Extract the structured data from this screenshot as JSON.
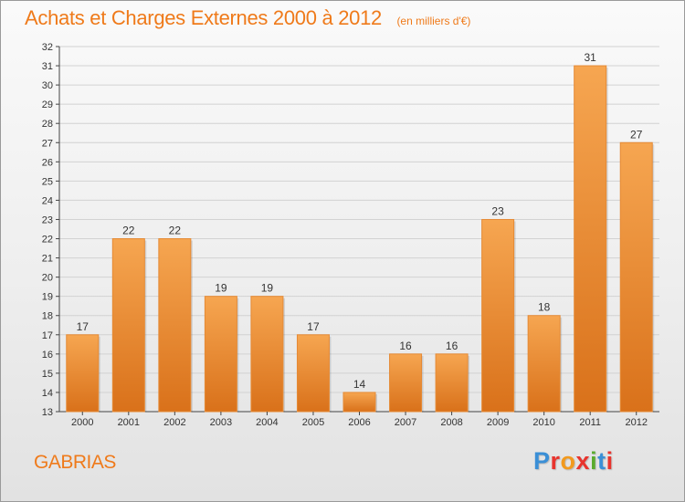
{
  "header": {
    "title": "Achats et Charges Externes 2000 à 2012",
    "unit": "(en milliers d'€)"
  },
  "footer": {
    "commune": "GABRIAS",
    "brand": "Proxiti",
    "brand_colors": [
      "#3a8fd6",
      "#e8342e",
      "#f29a1e",
      "#e8342e",
      "#5aab2e",
      "#3a8fd6",
      "#e8342e"
    ]
  },
  "colors": {
    "accent": "#ef7a1a",
    "bar_light": "#f6a651",
    "bar_dark": "#d9711a"
  },
  "chart_data": {
    "type": "bar",
    "categories": [
      "2000",
      "2001",
      "2002",
      "2003",
      "2004",
      "2005",
      "2006",
      "2007",
      "2008",
      "2009",
      "2010",
      "2011",
      "2012"
    ],
    "values": [
      17,
      22,
      22,
      19,
      19,
      17,
      14,
      16,
      16,
      23,
      18,
      31,
      27
    ],
    "ylim": [
      13,
      32
    ],
    "yticks": [
      13,
      14,
      15,
      16,
      17,
      18,
      19,
      20,
      21,
      22,
      23,
      24,
      25,
      26,
      27,
      28,
      29,
      30,
      31,
      32
    ],
    "grid": true,
    "data_labels": true
  }
}
